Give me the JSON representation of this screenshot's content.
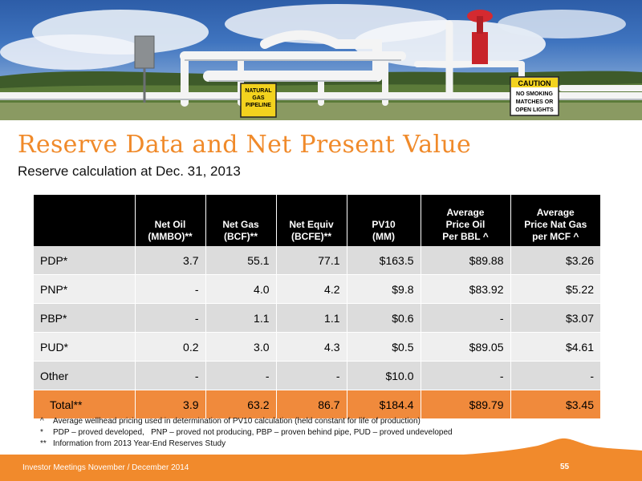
{
  "slide": {
    "title": "Reserve Data and Net Present Value",
    "subtitle": "Reserve calculation at Dec. 31, 2013"
  },
  "banner": {
    "sign_natural_gas": [
      "NATURAL",
      "GAS",
      "PIPELINE"
    ],
    "sign_caution": {
      "header": "CAUTION",
      "lines": [
        "NO SMOKING",
        "MATCHES OR",
        "OPEN LIGHTS"
      ]
    }
  },
  "table": {
    "headers": [
      [
        ""
      ],
      [
        "Net Oil",
        "(MMBO)**"
      ],
      [
        "Net Gas",
        "(BCF)**"
      ],
      [
        "Net Equiv",
        "(BCFE)**"
      ],
      [
        "PV10",
        "(MM)"
      ],
      [
        "Average",
        "Price Oil",
        "Per BBL ^"
      ],
      [
        "Average",
        "Price Nat Gas",
        "per MCF ^"
      ]
    ],
    "rows": [
      [
        "PDP*",
        "3.7",
        "55.1",
        "77.1",
        "$163.5",
        "$89.88",
        "$3.26"
      ],
      [
        "PNP*",
        "-",
        "4.0",
        "4.2",
        "$9.8",
        "$83.92",
        "$5.22"
      ],
      [
        "PBP*",
        "-",
        "1.1",
        "1.1",
        "$0.6",
        "-",
        "$3.07"
      ],
      [
        "PUD*",
        "0.2",
        "3.0",
        "4.3",
        "$0.5",
        "$89.05",
        "$4.61"
      ],
      [
        "Other",
        "-",
        "-",
        "-",
        "$10.0",
        "-",
        "-"
      ]
    ],
    "total": [
      "Total**",
      "3.9",
      "63.2",
      "86.7",
      "$184.4",
      "$89.79",
      "$3.45"
    ]
  },
  "footnotes": [
    {
      "symbol": "^",
      "text": "Average wellhead pricing used in determination of PV10 calculation (held constant for life of production)"
    },
    {
      "symbol": "*",
      "text": "PDP – proved developed,   PNP – proved not producing, PBP – proven behind pipe, PUD – proved undeveloped"
    },
    {
      "symbol": "**",
      "text": "Information from 2013 Year-End Reserves Study"
    }
  ],
  "footer": {
    "text": "Investor Meetings November / December 2014",
    "page_number": "55"
  },
  "colors": {
    "accent": "#f08a2a",
    "header_bg": "#000000",
    "row_dark": "#dcdcdc",
    "row_light": "#efefef",
    "total_row": "#f08a3c"
  }
}
